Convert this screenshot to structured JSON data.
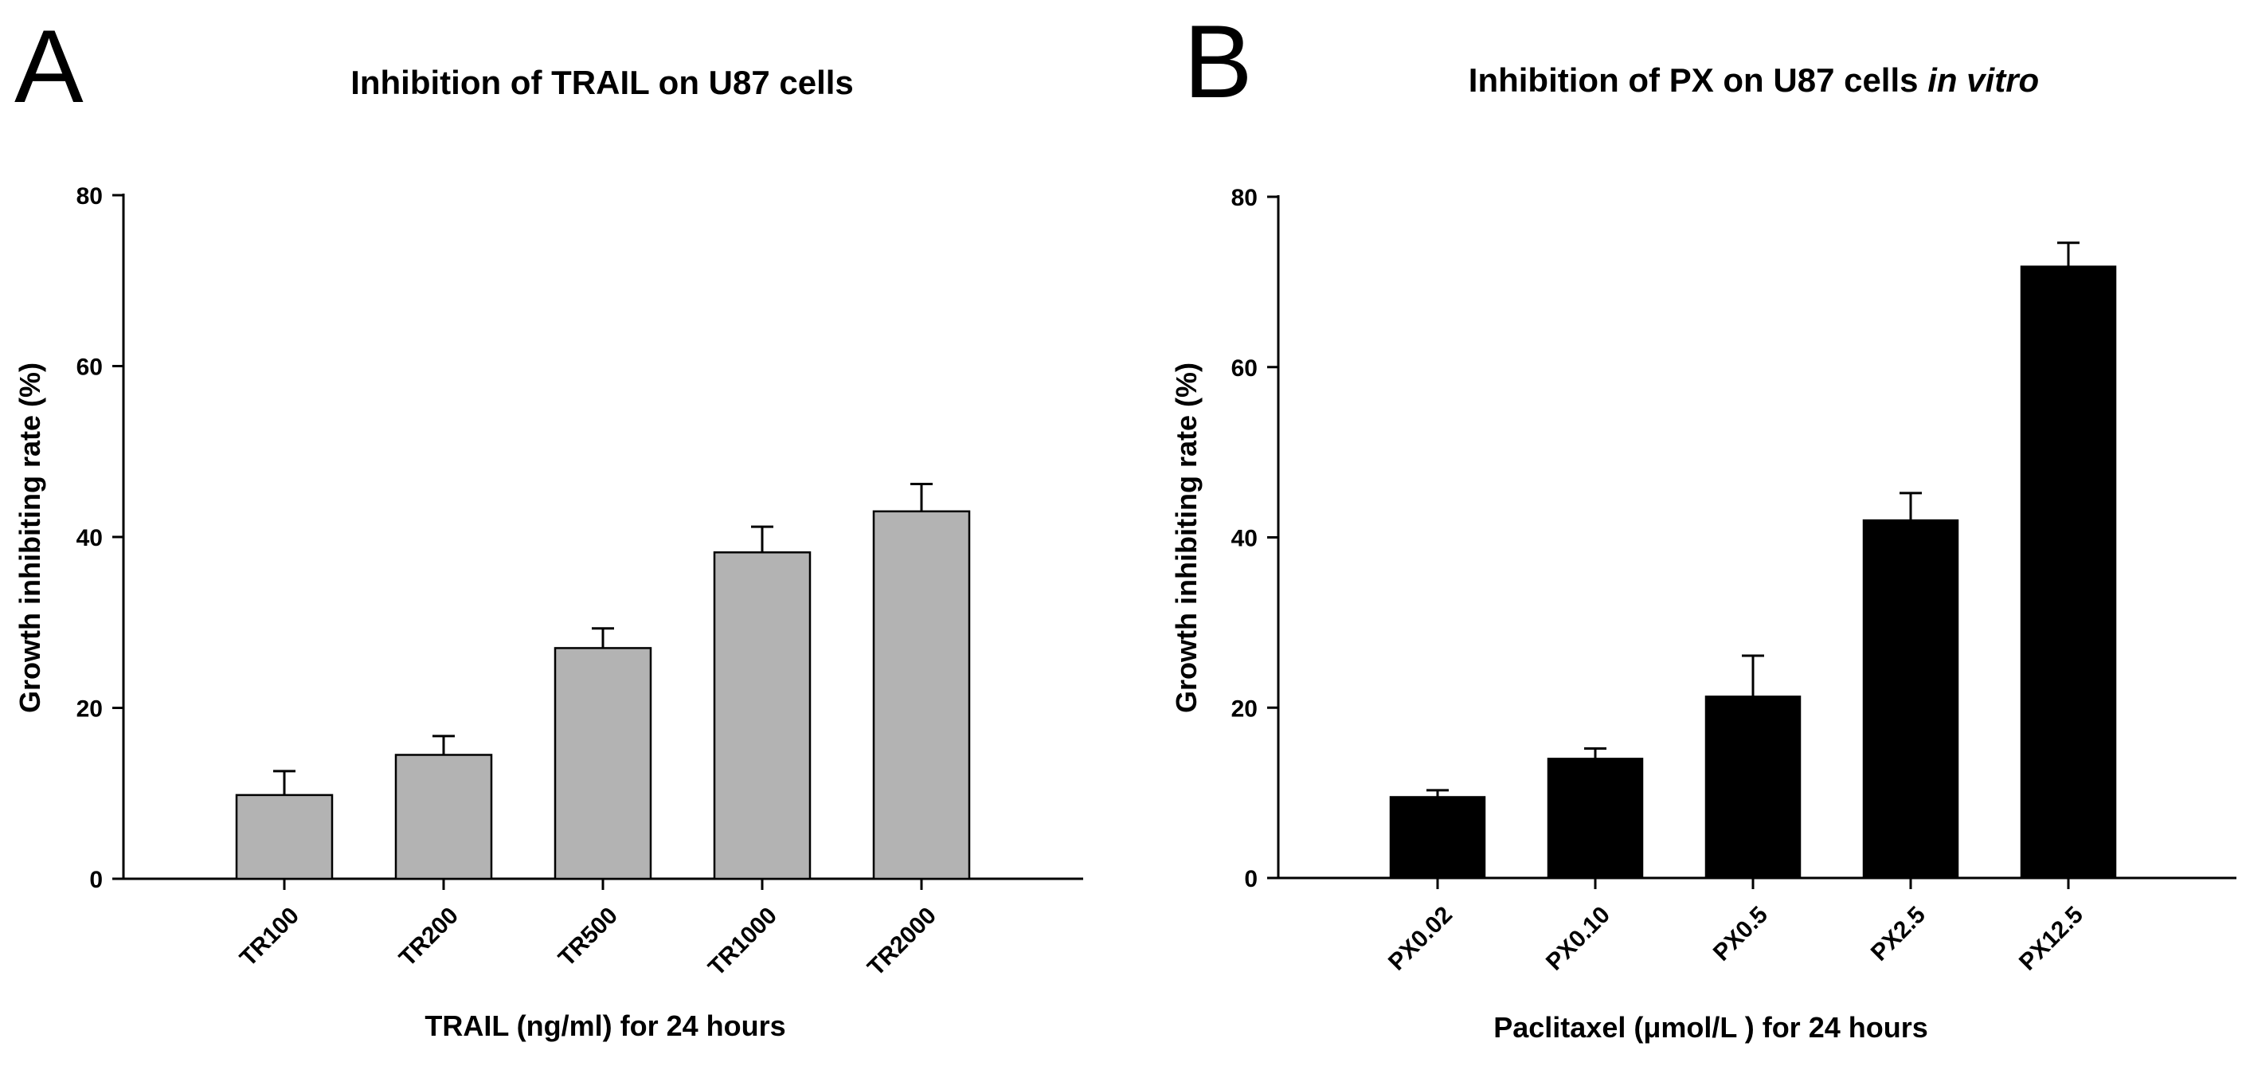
{
  "chart_data": [
    {
      "type": "bar",
      "panel": "A",
      "title": "Inhibition of TRAIL on U87 cells",
      "title_italic": "",
      "xlabel": "TRAIL (ng/ml)  for 24 hours",
      "ylabel": "Growth inhibiting rate (%)",
      "ylim": [
        0,
        80
      ],
      "yticks": [
        0,
        20,
        40,
        60,
        80
      ],
      "categories": [
        "TR100",
        "TR200",
        "TR500",
        "TR1000",
        "TR2000"
      ],
      "values": [
        9.8,
        14.5,
        27.0,
        38.2,
        43.0
      ],
      "errors": [
        2.8,
        2.2,
        2.3,
        3.0,
        3.2
      ],
      "bar_color": "#b3b3b3",
      "grid": false
    },
    {
      "type": "bar",
      "panel": "B",
      "title": "Inhibition of PX on U87 cells ",
      "title_italic": "in vitro",
      "xlabel": "Paclitaxel (μmol/L ) for 24 hours",
      "ylabel": "Growth inhibiting rate (%)",
      "ylim": [
        0,
        80
      ],
      "yticks": [
        0,
        20,
        40,
        60,
        80
      ],
      "categories": [
        "PX0.02",
        "PX0.10",
        "PX0.5",
        "PX2.5",
        "PX12.5"
      ],
      "values": [
        9.5,
        14.0,
        21.3,
        42.0,
        71.8
      ],
      "errors": [
        0.8,
        1.2,
        4.8,
        3.2,
        2.8
      ],
      "bar_color": "#000000",
      "grid": false
    }
  ]
}
